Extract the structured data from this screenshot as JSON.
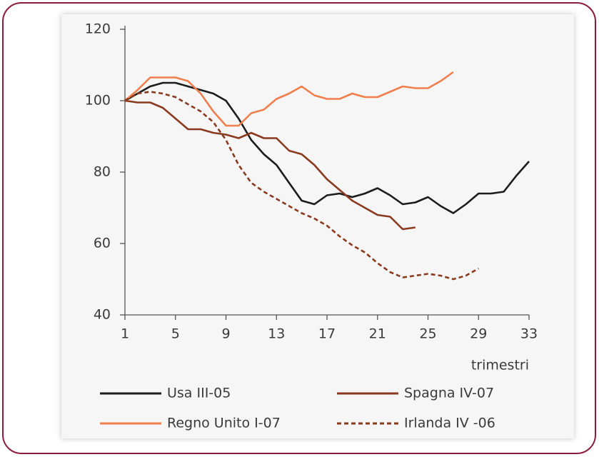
{
  "chart_data": {
    "type": "line",
    "x_label": "trimestri",
    "x": [
      1,
      2,
      3,
      4,
      5,
      6,
      7,
      8,
      9,
      10,
      11,
      12,
      13,
      14,
      15,
      16,
      17,
      18,
      19,
      20,
      21,
      22,
      23,
      24,
      25,
      26,
      27,
      28,
      29,
      30,
      31,
      32,
      33
    ],
    "xlim": [
      1,
      33
    ],
    "xticks": [
      1,
      5,
      9,
      13,
      17,
      21,
      25,
      29,
      33
    ],
    "ylim": [
      40,
      120
    ],
    "yticks": [
      40,
      60,
      80,
      100,
      120
    ],
    "series": [
      {
        "name": "Usa III-05",
        "color": "#1c1c1c",
        "style": "solid",
        "values": [
          100,
          102,
          104,
          105,
          105,
          104,
          103,
          102,
          100,
          95,
          89,
          85,
          82,
          77,
          72,
          71,
          73.5,
          74,
          73,
          74,
          75.5,
          73.5,
          71,
          71.5,
          73,
          70.5,
          68.5,
          71,
          74,
          74,
          74.5,
          79,
          83
        ]
      },
      {
        "name": "Spagna IV-07",
        "color": "#8a3a1f",
        "style": "solid",
        "values": [
          100,
          99.5,
          99.5,
          98,
          95,
          92,
          92,
          91,
          90.5,
          89.5,
          91,
          89.5,
          89.5,
          86,
          85,
          82,
          78,
          75,
          72,
          70,
          68,
          67.5,
          64,
          64.5,
          null,
          null,
          null,
          null,
          null,
          null,
          null,
          null,
          null
        ]
      },
      {
        "name": "Regno Unito I-07",
        "color": "#f07f4e",
        "style": "solid",
        "values": [
          100,
          103,
          106.5,
          106.5,
          106.5,
          105.5,
          102,
          97,
          93,
          93,
          96.5,
          97.5,
          100.5,
          102,
          104,
          101.5,
          100.5,
          100.5,
          102,
          101,
          101,
          102.5,
          104,
          103.5,
          103.5,
          105.5,
          108,
          null,
          null,
          null,
          null,
          null,
          null
        ]
      },
      {
        "name": "Irlanda IV -06",
        "color": "#8a3a1f",
        "style": "dashed",
        "values": [
          100,
          102,
          102.5,
          102,
          101,
          99,
          97,
          94,
          89,
          82,
          77,
          74.5,
          72.5,
          70.5,
          68.5,
          67,
          65,
          62,
          59.5,
          57.5,
          54.5,
          52,
          50.5,
          51,
          51.5,
          51,
          50,
          51,
          53,
          null,
          null,
          null,
          null
        ]
      }
    ]
  }
}
